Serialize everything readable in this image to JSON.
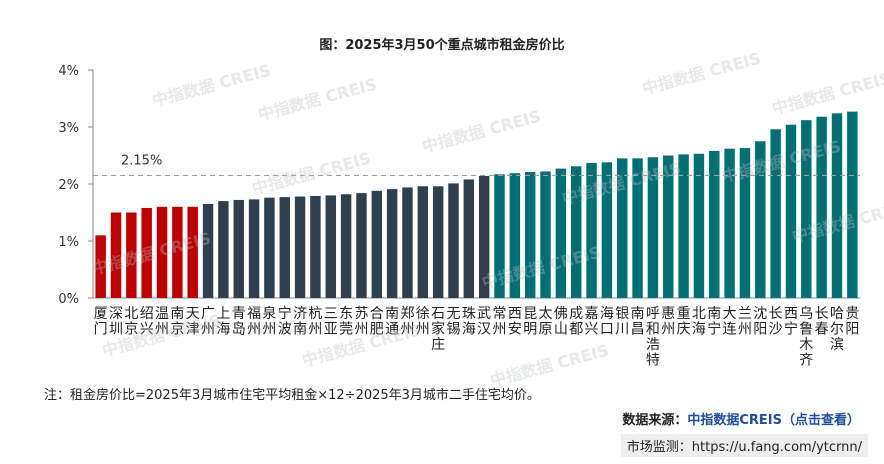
{
  "watermark_text": "中指数据 CREIS",
  "note": "注：租金房价比=2025年3月城市住宅平均租金×12÷2025年3月城市二手住宅均价。",
  "source": {
    "label": "数据来源：",
    "link_text": "中指数据CREIS（点击查看）"
  },
  "monitor": {
    "label": "市场监测：",
    "url": "https://u.fang.com/ytcrnn/"
  },
  "colors": {
    "top_group": "#c00000",
    "middle_group": "#2f3f4e",
    "bottom_group": "#007075",
    "reference_line": "#9e9e9e"
  },
  "chart_data": {
    "type": "bar",
    "title": "图：2025年3月50个重点城市租金房价比",
    "xlabel": "",
    "ylabel": "",
    "ylim": [
      0,
      4
    ],
    "yticks": [
      "0%",
      "1%",
      "2%",
      "3%",
      "4%"
    ],
    "reference_line": {
      "value": 2.15,
      "label": "2.15%"
    },
    "categories": [
      "厦门",
      "深圳",
      "北京",
      "绍兴",
      "温州",
      "南京",
      "天津",
      "广州",
      "上海",
      "青岛",
      "福州",
      "泉州",
      "宁波",
      "济南",
      "杭州",
      "三亚",
      "东莞",
      "苏州",
      "合肥",
      "南通",
      "郑州",
      "徐州",
      "石家庄",
      "无锡",
      "珠海",
      "武汉",
      "常州",
      "西安",
      "昆明",
      "太原",
      "佛山",
      "成都",
      "嘉兴",
      "海口",
      "银川",
      "南昌",
      "呼和浩特",
      "惠州",
      "重庆",
      "北海",
      "南宁",
      "大连",
      "兰州",
      "沈阳",
      "长沙",
      "西宁",
      "乌鲁木齐",
      "长春",
      "哈尔滨",
      "贵阳"
    ],
    "values": [
      1.1,
      1.5,
      1.5,
      1.58,
      1.6,
      1.6,
      1.6,
      1.65,
      1.7,
      1.72,
      1.73,
      1.76,
      1.77,
      1.78,
      1.79,
      1.8,
      1.82,
      1.84,
      1.88,
      1.91,
      1.94,
      1.96,
      1.96,
      2.01,
      2.08,
      2.14,
      2.17,
      2.19,
      2.21,
      2.22,
      2.27,
      2.31,
      2.37,
      2.38,
      2.45,
      2.45,
      2.47,
      2.5,
      2.52,
      2.53,
      2.58,
      2.62,
      2.63,
      2.75,
      2.96,
      3.04,
      3.12,
      3.18,
      3.24,
      3.27
    ],
    "groups": [
      {
        "name": "top",
        "color": "#c00000",
        "count": 7
      },
      {
        "name": "middle",
        "color": "#2f3f4e",
        "count": 19
      },
      {
        "name": "bottom",
        "color": "#007075",
        "count": 24
      }
    ]
  }
}
